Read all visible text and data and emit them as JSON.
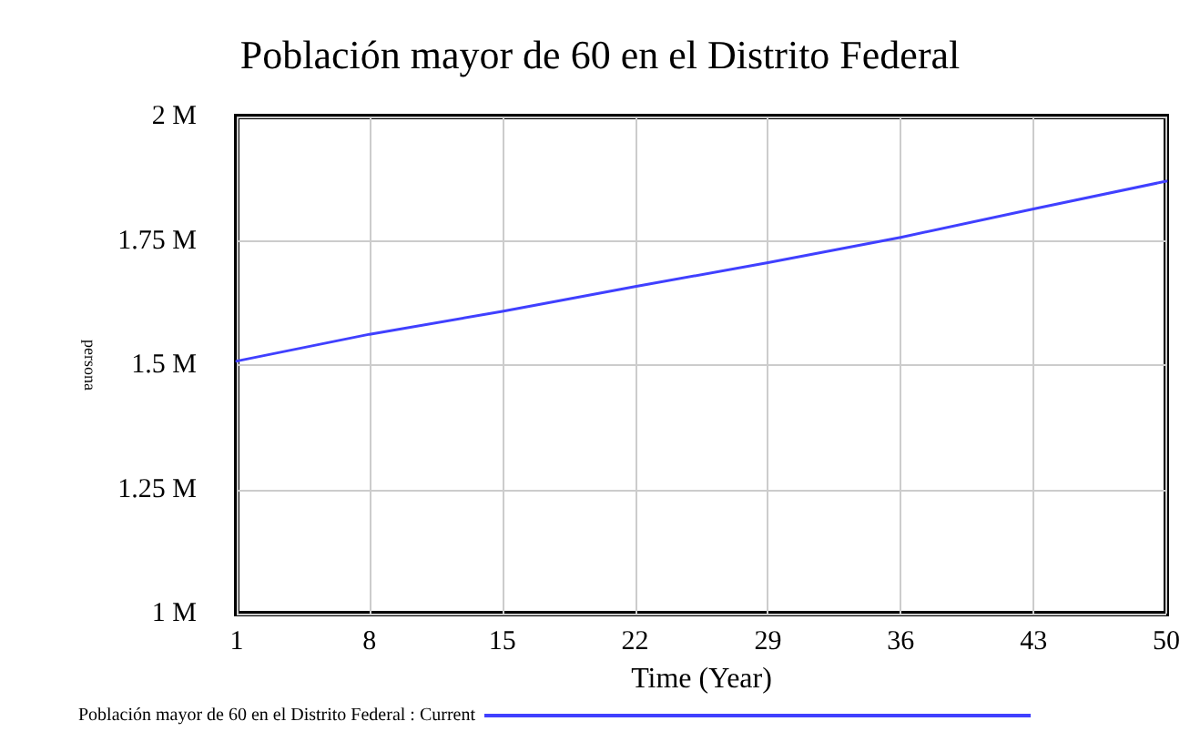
{
  "chart_data": {
    "type": "line",
    "title": "Población mayor de 60 en el Distrito Federal",
    "xlabel": "Time (Year)",
    "ylabel": "persona",
    "x": [
      1,
      8,
      15,
      22,
      29,
      36,
      43,
      50
    ],
    "series": [
      {
        "name": "Población mayor de 60 en el Distrito Federal : Current",
        "color": "#4040ff",
        "values": [
          1.508,
          1.562,
          1.608,
          1.658,
          1.706,
          1.757,
          1.814,
          1.87
        ]
      }
    ],
    "xlim": [
      1,
      50
    ],
    "xticks": [
      1,
      8,
      15,
      22,
      29,
      36,
      43,
      50
    ],
    "ylim": [
      1,
      2
    ],
    "yticks": [
      {
        "value": 1,
        "label": "1 M"
      },
      {
        "value": 1.25,
        "label": "1.25 M"
      },
      {
        "value": 1.5,
        "label": "1.5 M"
      },
      {
        "value": 1.75,
        "label": "1.75 M"
      },
      {
        "value": 2,
        "label": "2 M"
      }
    ],
    "grid": true,
    "legend": "bottom",
    "marker": "none",
    "line_style": "solid"
  }
}
